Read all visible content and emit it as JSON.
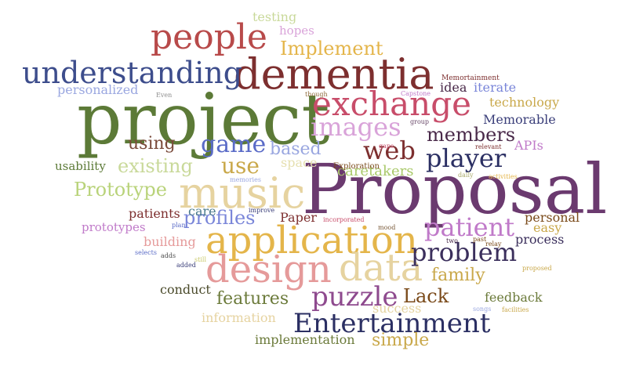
{
  "words": [
    {
      "text": "Proposal",
      "color": "#6b3a6f"
    },
    {
      "text": "project",
      "color": "#5c7a37"
    },
    {
      "text": "dementia",
      "color": "#7d2f2f"
    },
    {
      "text": "music",
      "color": "#e6d3a0"
    },
    {
      "text": "application",
      "color": "#e4b54a"
    },
    {
      "text": "design",
      "color": "#e59a9a"
    },
    {
      "text": "data",
      "color": "#e6d3a0"
    },
    {
      "text": "people",
      "color": "#b84a4a"
    },
    {
      "text": "understanding",
      "color": "#3d4d8c"
    },
    {
      "text": "exchange",
      "color": "#c84d6a"
    },
    {
      "text": "Entertainment",
      "color": "#2b2f63"
    },
    {
      "text": "puzzle",
      "color": "#8e4a8e"
    },
    {
      "text": "problem",
      "color": "#3b2f5c"
    },
    {
      "text": "images",
      "color": "#d9a3d9"
    },
    {
      "text": "web",
      "color": "#7d2f2f"
    },
    {
      "text": "player",
      "color": "#2b2f63"
    },
    {
      "text": "patient",
      "color": "#c07ac9"
    },
    {
      "text": "game",
      "color": "#5a6bc7"
    },
    {
      "text": "use",
      "color": "#c9a84a"
    },
    {
      "text": "Prototype",
      "color": "#b9d37a"
    },
    {
      "text": "profiles",
      "color": "#7a86d9"
    },
    {
      "text": "members",
      "color": "#4a2a4a"
    },
    {
      "text": "existing",
      "color": "#c9d99a"
    },
    {
      "text": "Implement",
      "color": "#e4b54a"
    },
    {
      "text": "based",
      "color": "#9aa7e0"
    },
    {
      "text": "using",
      "color": "#7a4a3a"
    },
    {
      "text": "family",
      "color": "#c9a84a"
    },
    {
      "text": "features",
      "color": "#6b7a3a"
    },
    {
      "text": "simple",
      "color": "#c9a84a"
    },
    {
      "text": "Lack",
      "color": "#7a4a1a"
    },
    {
      "text": "care",
      "color": "#4a7a8c"
    },
    {
      "text": "caretakers",
      "color": "#a9c96a"
    },
    {
      "text": "Memorable",
      "color": "#3b3f7a"
    },
    {
      "text": "process",
      "color": "#3b2f5c"
    },
    {
      "text": "technology",
      "color": "#c9a84a"
    },
    {
      "text": "feedback",
      "color": "#6b7a3a"
    },
    {
      "text": "personal",
      "color": "#7a4a1a"
    },
    {
      "text": "hopes",
      "color": "#d9a3d9"
    },
    {
      "text": "testing",
      "color": "#c9d99a"
    },
    {
      "text": "idea",
      "color": "#4a2a4a"
    },
    {
      "text": "iterate",
      "color": "#7a86d9"
    },
    {
      "text": "personalized",
      "color": "#9aa7e0"
    },
    {
      "text": "usability",
      "color": "#5c7a37"
    },
    {
      "text": "building",
      "color": "#e59a9a"
    },
    {
      "text": "prototypes",
      "color": "#c07ac9"
    },
    {
      "text": "patients",
      "color": "#7d2f2f"
    },
    {
      "text": "conduct",
      "color": "#4a4a2a"
    },
    {
      "text": "information",
      "color": "#e6d3a0"
    },
    {
      "text": "implementation",
      "color": "#6b7a3a"
    },
    {
      "text": "success",
      "color": "#e4d3a0"
    },
    {
      "text": "easy",
      "color": "#c9a84a"
    },
    {
      "text": "APIs",
      "color": "#c07ac9"
    },
    {
      "text": "Paper",
      "color": "#7d2f2f"
    },
    {
      "text": "space",
      "color": "#e6e0b0"
    },
    {
      "text": "Exploration",
      "color": "#7a4a1a"
    },
    {
      "text": "Memortainment",
      "color": "#7d2f2f"
    },
    {
      "text": "Even",
      "color": "#8e8e8e"
    },
    {
      "text": "though",
      "color": "#8e6a3a"
    },
    {
      "text": "Capstone",
      "color": "#c07ac9"
    },
    {
      "text": "group",
      "color": "#6b4a6b"
    },
    {
      "text": "gaps",
      "color": "#c84d6a"
    },
    {
      "text": "relevant",
      "color": "#7d2f2f"
    },
    {
      "text": "daily",
      "color": "#a9a96a"
    },
    {
      "text": "activities",
      "color": "#e4b54a"
    },
    {
      "text": "memories",
      "color": "#9aa7e0"
    },
    {
      "text": "improve",
      "color": "#3b3f7a"
    },
    {
      "text": "incorporated",
      "color": "#c84d6a"
    },
    {
      "text": "plan",
      "color": "#5a6bc7"
    },
    {
      "text": "mood",
      "color": "#7a5a3a"
    },
    {
      "text": "two",
      "color": "#4a2a4a"
    },
    {
      "text": "past",
      "color": "#7a4a1a"
    },
    {
      "text": "relay",
      "color": "#7a4a1a"
    },
    {
      "text": "selects",
      "color": "#5a6bc7"
    },
    {
      "text": "adds",
      "color": "#4a4a4a"
    },
    {
      "text": "still",
      "color": "#c9c96a"
    },
    {
      "text": "added",
      "color": "#3b3f7a"
    },
    {
      "text": "proposed",
      "color": "#c9a84a"
    },
    {
      "text": "songs",
      "color": "#9aa7e0"
    },
    {
      "text": "facilities",
      "color": "#c9a84a"
    }
  ]
}
